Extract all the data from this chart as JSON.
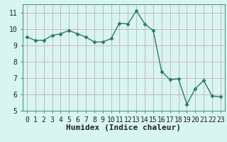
{
  "x": [
    0,
    1,
    2,
    3,
    4,
    5,
    6,
    7,
    8,
    9,
    10,
    11,
    12,
    13,
    14,
    15,
    16,
    17,
    18,
    19,
    20,
    21,
    22,
    23
  ],
  "y": [
    9.5,
    9.3,
    9.3,
    9.6,
    9.7,
    9.9,
    9.7,
    9.5,
    9.2,
    9.2,
    9.4,
    10.35,
    10.3,
    11.1,
    10.3,
    9.9,
    7.4,
    6.9,
    6.95,
    5.4,
    6.35,
    6.85,
    5.9,
    5.85
  ],
  "line_color": "#2a7a6e",
  "marker": "D",
  "marker_size": 2.5,
  "line_width": 1.0,
  "bg_color": "#d8f5ee",
  "grid_color": "#c8b8be",
  "xlabel": "Humidex (Indice chaleur)",
  "xlabel_fontsize": 8,
  "tick_fontsize": 7,
  "xlim": [
    -0.5,
    23.5
  ],
  "ylim": [
    5,
    11.5
  ],
  "yticks": [
    5,
    6,
    7,
    8,
    9,
    10,
    11
  ],
  "xticks": [
    0,
    1,
    2,
    3,
    4,
    5,
    6,
    7,
    8,
    9,
    10,
    11,
    12,
    13,
    14,
    15,
    16,
    17,
    18,
    19,
    20,
    21,
    22,
    23
  ],
  "spine_color": "#4a9a8a",
  "axis_color": "#4a9a8a"
}
